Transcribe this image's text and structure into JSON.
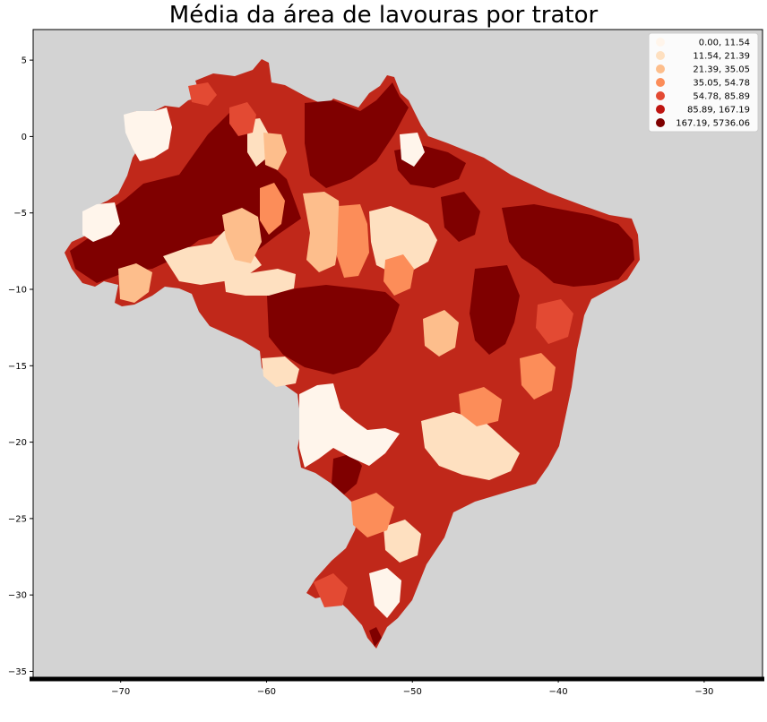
{
  "chart_data": {
    "type": "choropleth-map",
    "title": "Média da área de lavouras por trator",
    "background": "#d3d3d3",
    "xlim": [
      -76,
      -26
    ],
    "ylim": [
      -35.5,
      7
    ],
    "x_ticks": [
      -70,
      -60,
      -50,
      -40,
      -30
    ],
    "y_ticks": [
      5,
      0,
      -5,
      -10,
      -15,
      -20,
      -25,
      -30,
      -35
    ],
    "legend": {
      "position": "upper-right",
      "classes": [
        {
          "label": "0.00,   11.54",
          "color": "#fff5eb"
        },
        {
          "label": "11.54,   21.39",
          "color": "#fee0c0"
        },
        {
          "label": "21.39,   35.05",
          "color": "#fdbe8c"
        },
        {
          "label": "35.05,   54.78",
          "color": "#fc8d59"
        },
        {
          "label": "54.78,   85.89",
          "color": "#e34a33"
        },
        {
          "label": "85.89,  167.19",
          "color": "#bf1511"
        },
        {
          "label": "167.19, 5736.06",
          "color": "#7f0000"
        }
      ]
    }
  }
}
